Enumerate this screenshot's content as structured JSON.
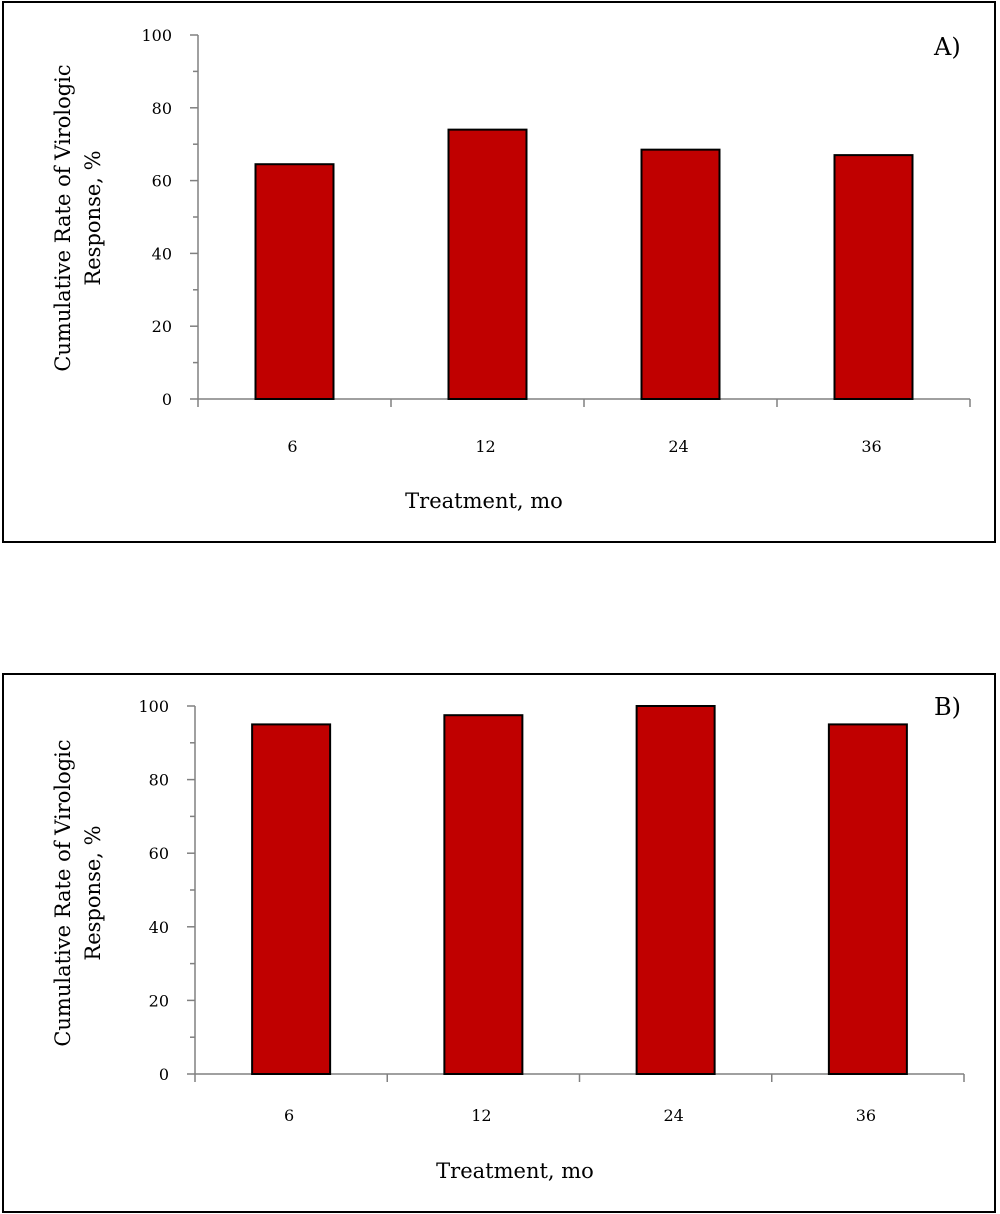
{
  "chart_data": [
    {
      "type": "bar",
      "panel_label": "A)",
      "categories": [
        "6",
        "12",
        "24",
        "36"
      ],
      "values": [
        64.5,
        74,
        68.5,
        67
      ],
      "xlabel": "Treatment, mo",
      "ylabel_lines": [
        "Cumulative Rate of Virologic",
        "Response, %"
      ],
      "ylim": [
        0,
        100
      ],
      "yticks": [
        "0",
        "20",
        "40",
        "60",
        "80",
        "100"
      ],
      "grid": false,
      "bar_color": "#c00000"
    },
    {
      "type": "bar",
      "panel_label": "B)",
      "categories": [
        "6",
        "12",
        "24",
        "36"
      ],
      "values": [
        95,
        97.5,
        100,
        95
      ],
      "xlabel": "Treatment, mo",
      "ylabel_lines": [
        "Cumulative Rate of Virologic",
        "Response, %"
      ],
      "ylim": [
        0,
        100
      ],
      "yticks": [
        "0",
        "20",
        "40",
        "60",
        "80",
        "100"
      ],
      "grid": false,
      "bar_color": "#c00000"
    }
  ]
}
